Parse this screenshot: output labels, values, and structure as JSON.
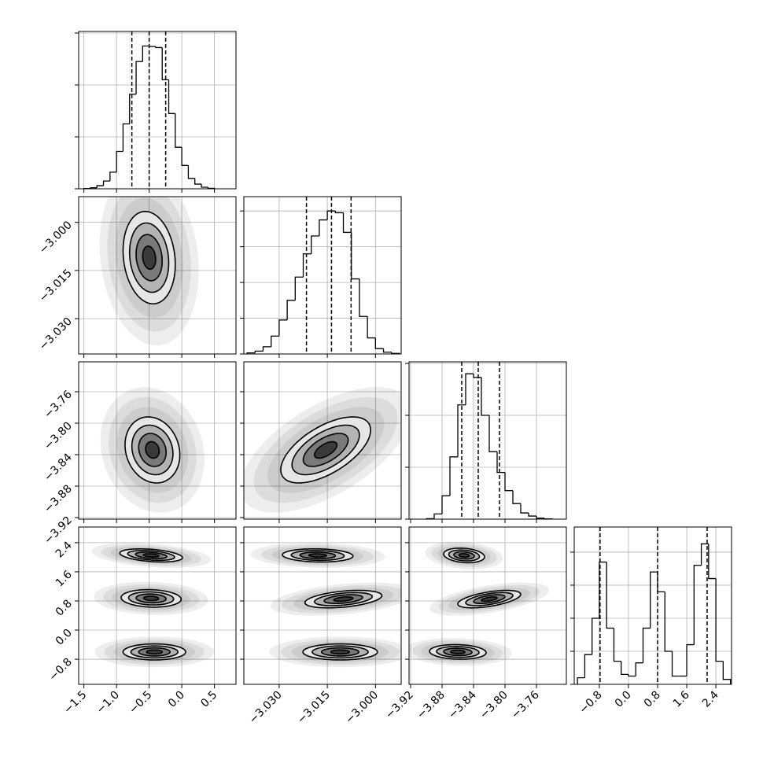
{
  "chart_data": {
    "type": "corner",
    "params": [
      {
        "lim": [
          -1.58,
          0.83
        ],
        "ticks": [
          {
            "value": -1.5,
            "label": "−1.5"
          },
          {
            "value": -1,
            "label": "−1.0"
          },
          {
            "value": -0.5,
            "label": "−0.5"
          },
          {
            "value": 0,
            "label": "0.0"
          },
          0.5
        ]
      },
      {
        "lim": [
          -3.041,
          -2.992
        ],
        "ticks": [
          {
            "value": -3.03,
            "label": "−3.030"
          },
          {
            "value": -3.015,
            "label": "−3.015"
          },
          {
            "value": -3,
            "label": "−3.000"
          }
        ]
      },
      {
        "lim": [
          -3.922,
          -3.722
        ],
        "ticks": [
          {
            "value": -3.92,
            "label": "−3.92"
          },
          {
            "value": -3.88,
            "label": "−3.88"
          },
          {
            "value": -3.84,
            "label": "−3.84"
          },
          {
            "value": -3.8,
            "label": "−3.80"
          },
          {
            "value": -3.76,
            "label": "−3.76"
          }
        ]
      },
      {
        "lim": [
          -1.49,
          2.83
        ],
        "ticks": [
          {
            "value": -0.8,
            "label": "−0.8"
          },
          {
            "value": 0,
            "label": "0.0"
          },
          0.8,
          1.6,
          2.4
        ]
      }
    ],
    "histograms": [
      {
        "bins": [
          -1.5,
          -1.4,
          -1.3,
          -1.2,
          -1.1,
          -1.0,
          -0.9,
          -0.8,
          -0.7,
          -0.6,
          -0.5,
          -0.4,
          -0.3,
          -0.2,
          -0.1,
          0.0,
          0.1,
          0.2,
          0.3,
          0.4,
          0.5
        ],
        "counts": [
          5,
          20,
          60,
          150,
          320,
          720,
          1250,
          1820,
          2450,
          2750,
          2740,
          2720,
          2100,
          1450,
          800,
          450,
          200,
          90,
          30,
          10
        ],
        "ylim": [
          0,
          3030
        ],
        "yticks": [
          0,
          1000,
          2000,
          3000
        ],
        "quantiles": [
          -0.765,
          -0.5,
          -0.247
        ]
      },
      {
        "bins": [
          -3.04,
          -3.0375,
          -3.035,
          -3.0325,
          -3.03,
          -3.0275,
          -3.025,
          -3.0225,
          -3.02,
          -3.0175,
          -3.015,
          -3.0125,
          -3.01,
          -3.0075,
          -3.005,
          -3.0025,
          -3.0,
          -2.9975,
          -2.995,
          -2.9925
        ],
        "counts": [
          30,
          80,
          200,
          500,
          950,
          1500,
          2150,
          2800,
          3300,
          3750,
          4000,
          3950,
          3400,
          2100,
          1050,
          450,
          150,
          50,
          15
        ],
        "ylim": [
          0,
          4400
        ],
        "yticks": [
          0,
          1000,
          2000,
          3000,
          4000
        ],
        "quantiles": [
          -3.0215,
          -3.0137,
          -3.0076
        ]
      },
      {
        "bins": [
          -3.9,
          -3.89,
          -3.88,
          -3.87,
          -3.86,
          -3.85,
          -3.84,
          -3.83,
          -3.82,
          -3.81,
          -3.8,
          -3.79,
          -3.78,
          -3.77,
          -3.76,
          -3.75,
          -3.74
        ],
        "counts": [
          10,
          100,
          450,
          1200,
          2200,
          2800,
          2730,
          2000,
          1300,
          900,
          550,
          300,
          120,
          60,
          20,
          5
        ],
        "ylim": [
          0,
          3030
        ],
        "yticks": [
          0,
          1000,
          2000,
          3000
        ],
        "quantiles": [
          -3.855,
          -3.834,
          -3.807
        ]
      },
      {
        "bins": [
          -1.4,
          -1.2,
          -1.0,
          -0.8,
          -0.6,
          -0.4,
          -0.2,
          0.0,
          0.2,
          0.4,
          0.6,
          0.8,
          1.0,
          1.2,
          1.4,
          1.6,
          1.8,
          2.0,
          2.2,
          2.4,
          2.6,
          2.8
        ],
        "counts": [
          200,
          900,
          2000,
          3700,
          1700,
          700,
          300,
          250,
          650,
          1700,
          3400,
          2800,
          1000,
          250,
          250,
          1200,
          3600,
          4250,
          3200,
          700,
          150
        ],
        "ylim": [
          0,
          4760
        ],
        "yticks": [
          0,
          1000,
          2000,
          3000,
          4000
        ],
        "quantiles": [
          -0.78,
          0.8,
          2.16
        ]
      }
    ],
    "levels": [
      0.5,
      1,
      1.5,
      2
    ],
    "panels": [
      {
        "blobs": [
          {
            "center": [
              -0.5,
              -3.011
            ],
            "sigma": [
              0.2,
              0.0072
            ],
            "rho": -0.15
          }
        ]
      },
      {
        "blobs": [
          {
            "center": [
              -0.45,
              -3.834
            ],
            "sigma": [
              0.21,
              0.021
            ],
            "rho": -0.15
          }
        ]
      },
      {
        "blobs": [
          {
            "center": [
              -3.0155,
              -3.834
            ],
            "sigma": [
              0.007,
              0.021
            ],
            "rho": 0.6
          }
        ]
      },
      {
        "blobs": [
          {
            "center": [
              -0.47,
              2.05
            ],
            "sigma": [
              0.24,
              0.09
            ],
            "rho": -0.35
          },
          {
            "center": [
              -0.47,
              0.87
            ],
            "sigma": [
              0.23,
              0.12
            ],
            "rho": -0.1
          },
          {
            "center": [
              -0.42,
              -0.6
            ],
            "sigma": [
              0.24,
              0.11
            ],
            "rho": 0
          }
        ]
      },
      {
        "blobs": [
          {
            "center": [
              -3.018,
              2.05
            ],
            "sigma": [
              0.0055,
              0.09
            ],
            "rho": -0.1
          },
          {
            "center": [
              -3.01,
              0.85
            ],
            "sigma": [
              0.006,
              0.12
            ],
            "rho": 0.4
          },
          {
            "center": [
              -3.011,
              -0.6
            ],
            "sigma": [
              0.0058,
              0.11
            ],
            "rho": 0
          }
        ]
      },
      {
        "blobs": [
          {
            "center": [
              -3.852,
              2.05
            ],
            "sigma": [
              0.013,
              0.1
            ],
            "rho": -0.2
          },
          {
            "center": [
              -3.82,
              0.85
            ],
            "sigma": [
              0.02,
              0.12
            ],
            "rho": 0.55
          },
          {
            "center": [
              -3.86,
              -0.6
            ],
            "sigma": [
              0.018,
              0.1
            ],
            "rho": -0.1
          }
        ]
      }
    ]
  }
}
